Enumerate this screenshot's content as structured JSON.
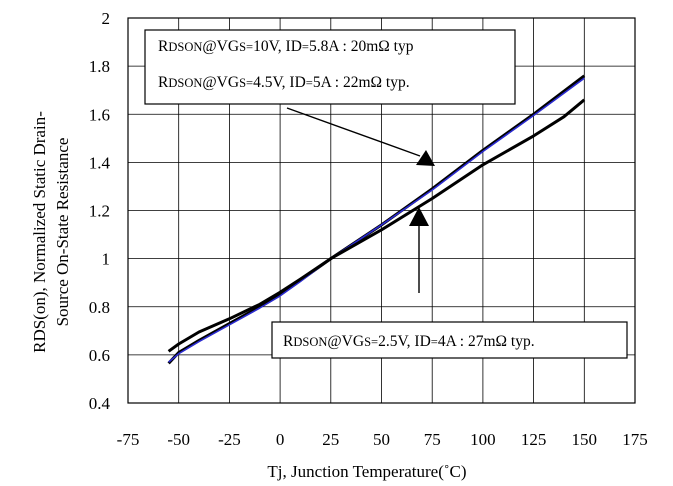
{
  "chart_data": {
    "type": "line",
    "xlabel": "Tj, Junction Temperature(˚C)",
    "ylabel": [
      "RDS(on), Normalized Static Drain-",
      "Source On-State Resistance"
    ],
    "xlim": [
      -75,
      175
    ],
    "ylim": [
      0.4,
      2.0
    ],
    "xticks": [
      -75,
      -50,
      -25,
      0,
      25,
      50,
      75,
      100,
      125,
      150,
      175
    ],
    "yticks": [
      0.4,
      0.6,
      0.8,
      1.0,
      1.2,
      1.4,
      1.6,
      1.8,
      2.0
    ],
    "xtick_labels": [
      "-75",
      "-50",
      "-25",
      "0",
      "25",
      "50",
      "75",
      "100",
      "125",
      "150",
      "175"
    ],
    "ytick_labels": [
      "0.4",
      "0.6",
      "0.8",
      "1",
      "1.2",
      "1.4",
      "1.6",
      "1.8",
      "2"
    ],
    "grid": true,
    "series": [
      {
        "name": "RDSON@VGS=10V, ID=5.8A : 20mΩ typ",
        "color": "#000000",
        "x": [
          -55,
          -50,
          -40,
          -25,
          -10,
          0,
          10,
          25,
          50,
          75,
          100,
          125,
          150
        ],
        "y": [
          0.565,
          0.61,
          0.66,
          0.73,
          0.8,
          0.85,
          0.91,
          1.0,
          1.14,
          1.29,
          1.45,
          1.6,
          1.76
        ]
      },
      {
        "name": "RDSON@VGS=4.5V, ID=5A : 22mΩ typ.",
        "color": "#2b2bd0",
        "x": [
          -55,
          -50,
          -40,
          -25,
          -10,
          0,
          10,
          25,
          50,
          75,
          100,
          125,
          150
        ],
        "y": [
          0.57,
          0.605,
          0.655,
          0.725,
          0.795,
          0.845,
          0.905,
          1.0,
          1.14,
          1.285,
          1.445,
          1.595,
          1.75
        ]
      },
      {
        "name": "RDSON@VGS=2.5V, ID=4A : 27mΩ typ.",
        "color": "#000000",
        "x": [
          -55,
          -50,
          -40,
          -25,
          -10,
          0,
          10,
          25,
          50,
          75,
          100,
          125,
          140,
          150
        ],
        "y": [
          0.615,
          0.645,
          0.695,
          0.75,
          0.81,
          0.86,
          0.915,
          1.0,
          1.12,
          1.25,
          1.39,
          1.51,
          1.59,
          1.66
        ]
      }
    ],
    "annotations": [
      {
        "segments": [
          [
            "RDSON@V",
            "DSON"
          ],
          [
            "GS=10V, I",
            "GS"
          ],
          [
            "D=5.8A : 20m",
            "D"
          ],
          [
            "Ω typ",
            ""
          ]
        ]
      },
      {
        "segments": [
          [
            "RDSON@V",
            "DSON"
          ],
          [
            "GS=4.5V, I",
            "GS"
          ],
          [
            "D=5A : 22m",
            "D"
          ],
          [
            "Ω typ.",
            ""
          ]
        ]
      },
      {
        "segments": [
          [
            "RDSON@V",
            "DSON"
          ],
          [
            "GS=2.5V, I",
            "GS"
          ],
          [
            "D=4A : 27m",
            "D"
          ],
          [
            "Ω typ.",
            ""
          ]
        ]
      }
    ]
  }
}
